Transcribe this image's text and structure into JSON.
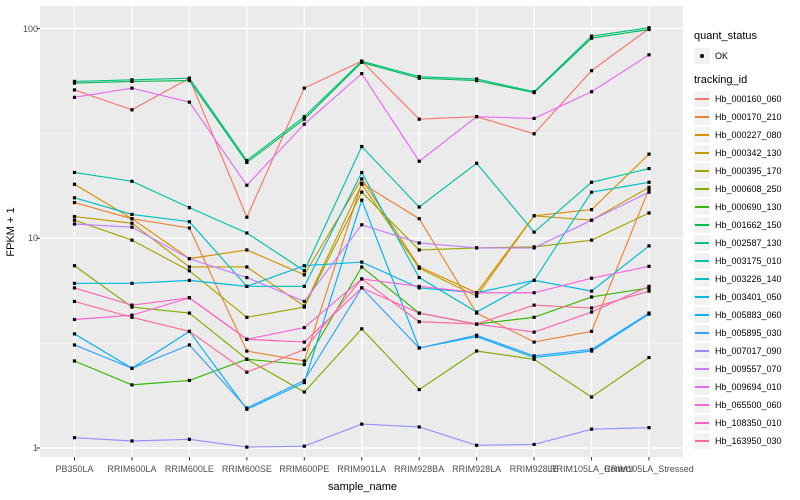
{
  "figure": {
    "background": "#FFFFFF",
    "panel_background": "#EBEBEB",
    "grid_color": "#FFFFFF",
    "tick_mark_color": "#333333",
    "axis_text_color": "#4D4D4D",
    "point_marker_color": "#000000"
  },
  "chart_data": {
    "type": "line",
    "title": "",
    "xlabel": "sample_name",
    "ylabel": "FPKM + 1",
    "y_scale": "log10",
    "y_ticks": [
      "1",
      "10",
      "100"
    ],
    "y_tick_values": [
      1,
      10,
      100
    ],
    "y_minor_tick_values": [
      3.162,
      31.62
    ],
    "ylim": [
      1,
      110
    ],
    "grid": "on",
    "legend_position": "right",
    "marker": "black-point",
    "categories": [
      "PB350LA",
      "RRIM600LA",
      "RRIM600LE",
      "RRIM600SE",
      "RRIM600PE",
      "RRIM901LA",
      "RRIM928BA",
      "RRIM928LA",
      "RRIM928LE",
      "RRIM105LA_Control",
      "RRIM105LA_Stressed"
    ],
    "legend": {
      "quant_status": {
        "title": "quant_status",
        "items": [
          {
            "label": "OK",
            "marker": "point",
            "color": "#000000"
          }
        ]
      },
      "tracking_id": {
        "title": "tracking_id"
      }
    },
    "series": [
      {
        "name": "Hb_000160_060",
        "color": "#F8766D",
        "values": [
          51,
          41,
          58,
          12.6,
          52,
          70,
          37,
          38,
          31.5,
          63,
          100
        ]
      },
      {
        "name": "Hb_000170_210",
        "color": "#EA8331",
        "values": [
          14.8,
          12.4,
          11.2,
          2.9,
          2.6,
          18.3,
          12.4,
          4.4,
          3.2,
          3.6,
          17.2
        ]
      },
      {
        "name": "Hb_000227_080",
        "color": "#D89000",
        "values": [
          18.1,
          12.4,
          8.0,
          8.8,
          6.7,
          19.2,
          7.3,
          5.5,
          12.8,
          13.7,
          25.2
        ]
      },
      {
        "name": "Hb_000342_130",
        "color": "#C09B00",
        "values": [
          12.7,
          11.8,
          7.3,
          7.3,
          4.75,
          18.1,
          7.2,
          5.3,
          12.8,
          12.2,
          17.5
        ]
      },
      {
        "name": "Hb_000395_170",
        "color": "#A3A500",
        "values": [
          12.2,
          9.8,
          7.0,
          4.2,
          4.7,
          16.6,
          8.8,
          9.0,
          9.1,
          9.8,
          13.2
        ]
      },
      {
        "name": "Hb_000608_250",
        "color": "#7CAE00",
        "values": [
          7.4,
          4.7,
          4.4,
          2.65,
          1.85,
          3.7,
          1.9,
          2.9,
          2.65,
          1.75,
          2.7
        ]
      },
      {
        "name": "Hb_000690_130",
        "color": "#39B600",
        "values": [
          2.6,
          2.0,
          2.1,
          2.65,
          2.5,
          7.3,
          4.4,
          3.9,
          4.2,
          5.25,
          5.8
        ]
      },
      {
        "name": "Hb_001662_150",
        "color": "#00BB4E",
        "values": [
          55,
          56,
          56.5,
          23,
          37,
          69,
          58,
          56.5,
          49.5,
          90,
          99
        ]
      },
      {
        "name": "Hb_002587_130",
        "color": "#00C087",
        "values": [
          56,
          57,
          58,
          23.5,
          38,
          70,
          59,
          57.5,
          50,
          92,
          101
        ]
      },
      {
        "name": "Hb_003175_010",
        "color": "#00C1AB",
        "values": [
          20.6,
          18.7,
          14,
          10.6,
          7.0,
          27.4,
          14.1,
          22.8,
          10.7,
          18.5,
          21.5
        ]
      },
      {
        "name": "Hb_003226_140",
        "color": "#00BFC4",
        "values": [
          15.6,
          13.0,
          12.0,
          5.9,
          5.9,
          20.6,
          6.5,
          4.45,
          6.3,
          16.6,
          18.5
        ]
      },
      {
        "name": "Hb_003401_050",
        "color": "#00BAE0",
        "values": [
          6.1,
          6.1,
          6.3,
          5.9,
          7.4,
          7.7,
          5.8,
          5.5,
          6.3,
          5.6,
          9.2
        ]
      },
      {
        "name": "Hb_005883_060",
        "color": "#00B0F6",
        "values": [
          3.5,
          2.4,
          3.6,
          1.53,
          2.05,
          15.2,
          3.0,
          3.4,
          2.7,
          2.9,
          4.35
        ]
      },
      {
        "name": "Hb_005895_030",
        "color": "#35A2FF",
        "values": [
          3.1,
          2.4,
          3.1,
          1.55,
          2.1,
          5.8,
          3.0,
          3.45,
          2.75,
          2.95,
          4.4
        ]
      },
      {
        "name": "Hb_007017_090",
        "color": "#9590FF",
        "values": [
          1.12,
          1.08,
          1.1,
          1.01,
          1.02,
          1.3,
          1.26,
          1.03,
          1.04,
          1.23,
          1.25
        ]
      },
      {
        "name": "Hb_009557_070",
        "color": "#C77CFF",
        "values": [
          11.7,
          11.3,
          8.0,
          6.5,
          5.0,
          11.6,
          9.5,
          9.0,
          9.0,
          12.2,
          16.6
        ]
      },
      {
        "name": "Hb_009694_010",
        "color": "#E76BF3",
        "values": [
          47,
          52,
          44.6,
          17.9,
          35,
          61,
          23.3,
          38,
          37.3,
          50,
          75
        ]
      },
      {
        "name": "Hb_065500_060",
        "color": "#FA62DB",
        "values": [
          4.1,
          4.3,
          5.2,
          3.3,
          3.75,
          6.4,
          5.9,
          5.5,
          5.5,
          6.45,
          7.35
        ]
      },
      {
        "name": "Hb_108350_010",
        "color": "#FF62BC",
        "values": [
          5.8,
          4.8,
          5.2,
          3.3,
          3.2,
          5.8,
          4.4,
          3.9,
          3.57,
          4.45,
          5.9
        ]
      },
      {
        "name": "Hb_163950_030",
        "color": "#FF6A98",
        "values": [
          5.0,
          4.2,
          3.6,
          2.3,
          2.95,
          6.4,
          4.0,
          3.9,
          4.8,
          4.65,
          5.6
        ]
      }
    ]
  }
}
